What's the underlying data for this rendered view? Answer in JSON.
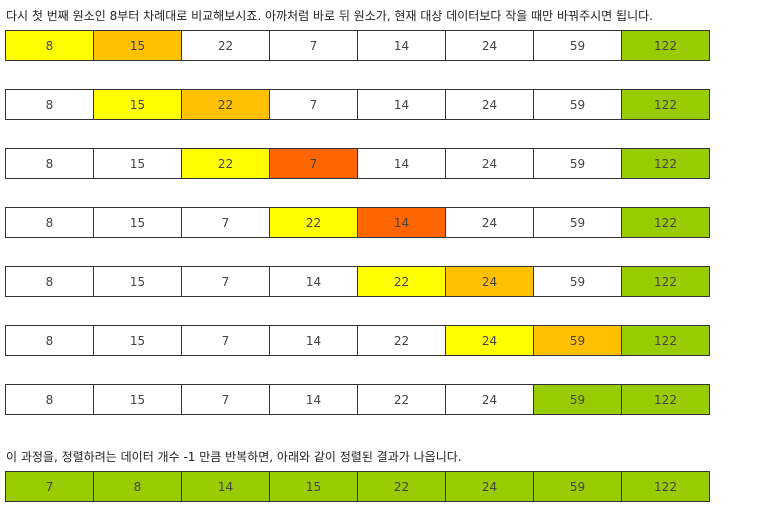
{
  "intro_text": "다시 첫 번째 원소인 8부터 차례대로 비교해보시죠. 아까처럼 바로 뒤 원소가, 현재 대상 데이터보다 작을 때만 바꿔주시면 됩니다.",
  "outro_text": "이 과정을, 정렬하려는 데이터 개수 -1 만큼 반복하면, 아래와 같이 정렬된 결과가 나옵니다.",
  "colors": {
    "w": "#ffffff",
    "yellow": "#ffff00",
    "orange": "#ffc000",
    "red": "#ff6600",
    "green": "#99cc00"
  },
  "steps": [
    {
      "values": [
        "8",
        "15",
        "22",
        "7",
        "14",
        "24",
        "59",
        "122"
      ],
      "colors": [
        "yellow",
        "orange",
        "w",
        "w",
        "w",
        "w",
        "w",
        "green"
      ]
    },
    {
      "values": [
        "8",
        "15",
        "22",
        "7",
        "14",
        "24",
        "59",
        "122"
      ],
      "colors": [
        "w",
        "yellow",
        "orange",
        "w",
        "w",
        "w",
        "w",
        "green"
      ]
    },
    {
      "values": [
        "8",
        "15",
        "22",
        "7",
        "14",
        "24",
        "59",
        "122"
      ],
      "colors": [
        "w",
        "w",
        "yellow",
        "red",
        "w",
        "w",
        "w",
        "green"
      ]
    },
    {
      "values": [
        "8",
        "15",
        "7",
        "22",
        "14",
        "24",
        "59",
        "122"
      ],
      "colors": [
        "w",
        "w",
        "w",
        "yellow",
        "red",
        "w",
        "w",
        "green"
      ]
    },
    {
      "values": [
        "8",
        "15",
        "7",
        "14",
        "22",
        "24",
        "59",
        "122"
      ],
      "colors": [
        "w",
        "w",
        "w",
        "w",
        "yellow",
        "orange",
        "w",
        "green"
      ]
    },
    {
      "values": [
        "8",
        "15",
        "7",
        "14",
        "22",
        "24",
        "59",
        "122"
      ],
      "colors": [
        "w",
        "w",
        "w",
        "w",
        "w",
        "yellow",
        "orange",
        "green"
      ]
    },
    {
      "values": [
        "8",
        "15",
        "7",
        "14",
        "22",
        "24",
        "59",
        "122"
      ],
      "colors": [
        "w",
        "w",
        "w",
        "w",
        "w",
        "w",
        "green",
        "green"
      ]
    }
  ],
  "result": {
    "values": [
      "7",
      "8",
      "14",
      "15",
      "22",
      "24",
      "59",
      "122"
    ],
    "colors": [
      "green",
      "green",
      "green",
      "green",
      "green",
      "green",
      "green",
      "green"
    ]
  }
}
